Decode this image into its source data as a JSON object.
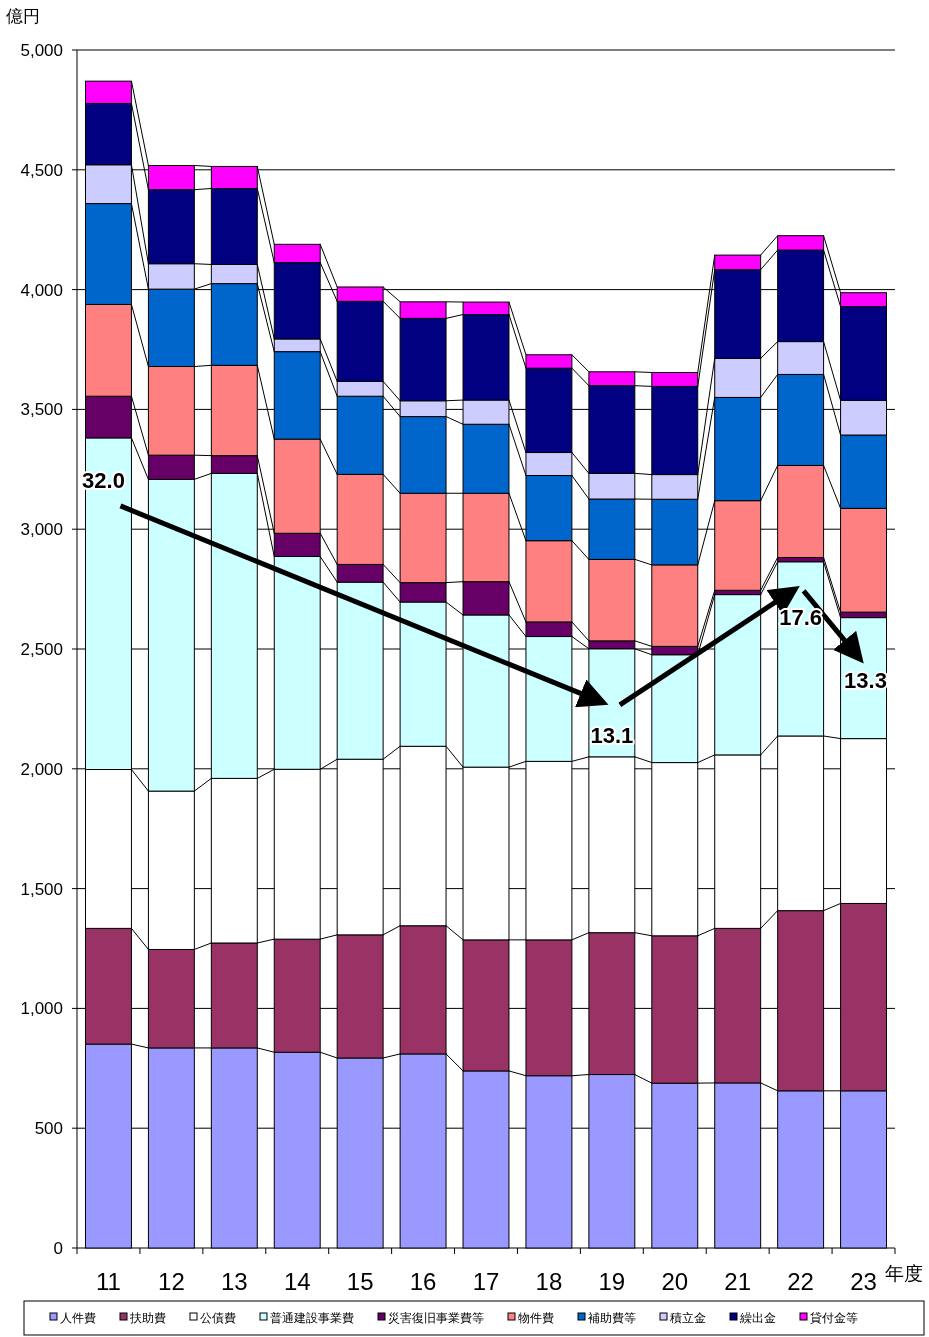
{
  "chart_data": {
    "type": "bar",
    "stacked": true,
    "ylabel": "億円",
    "xlabel": "年度",
    "categories": [
      "11",
      "12",
      "13",
      "14",
      "15",
      "16",
      "17",
      "18",
      "19",
      "20",
      "21",
      "22",
      "23"
    ],
    "series": [
      {
        "name": "人件費",
        "color": "#9999ff",
        "values": [
          851,
          835,
          835,
          817,
          793,
          810,
          739,
          719,
          724,
          688,
          689,
          656,
          656
        ]
      },
      {
        "name": "扶助費",
        "color": "#993366",
        "values": [
          483,
          411,
          438,
          472,
          514,
          535,
          547,
          567,
          592,
          615,
          645,
          752,
          782
        ]
      },
      {
        "name": "公債費",
        "color": "#ffffff",
        "values": [
          663,
          661,
          687,
          709,
          733,
          749,
          721,
          745,
          734,
          723,
          724,
          729,
          688
        ]
      },
      {
        "name": "普通建設事業費",
        "color": "#ccffff",
        "values": [
          1384,
          1301,
          1273,
          888,
          739,
          602,
          635,
          521,
          451,
          450,
          669,
          727,
          505
        ]
      },
      {
        "name": "災害復旧事業費等",
        "color": "#660066",
        "values": [
          174,
          101,
          74,
          97,
          74,
          81,
          139,
          61,
          33,
          35,
          18,
          18,
          23
        ]
      },
      {
        "name": "物件費",
        "color": "#ff8080",
        "values": [
          383,
          370,
          377,
          393,
          376,
          373,
          369,
          339,
          340,
          340,
          374,
          384,
          433
        ]
      },
      {
        "name": "補助費等",
        "color": "#0066cc",
        "values": [
          421,
          323,
          341,
          365,
          326,
          320,
          288,
          272,
          252,
          274,
          431,
          380,
          306
        ]
      },
      {
        "name": "積立金",
        "color": "#ccccff",
        "values": [
          162,
          106,
          80,
          53,
          62,
          66,
          101,
          96,
          107,
          103,
          163,
          137,
          145
        ]
      },
      {
        "name": "繰出金",
        "color": "#000080",
        "values": [
          256,
          309,
          317,
          319,
          334,
          344,
          357,
          352,
          366,
          368,
          370,
          382,
          391
        ]
      },
      {
        "name": "貸付金等",
        "color": "#ff00ff",
        "values": [
          93,
          101,
          92,
          76,
          60,
          69,
          52,
          56,
          58,
          58,
          61,
          60,
          58
        ]
      }
    ],
    "ylim": [
      0,
      5000
    ],
    "yticks": [
      0,
      500,
      {
        "value": 1000,
        "label": "1,000"
      },
      {
        "value": 1500,
        "label": "1,500"
      },
      {
        "value": 2000,
        "label": "2,000"
      },
      {
        "value": 2500,
        "label": "2,500"
      },
      {
        "value": 3000,
        "label": "3,000"
      },
      {
        "value": 3500,
        "label": "3,500"
      },
      {
        "value": 4000,
        "label": "4,000"
      },
      {
        "value": 4500,
        "label": "4,500"
      },
      {
        "value": 5000,
        "label": "5,000"
      }
    ],
    "grid": "y",
    "legend": "bottom",
    "annotations": [
      {
        "text": "32.0",
        "x": "11",
        "y": 3381
      },
      {
        "text": "13.1",
        "x": "19",
        "y": 2050
      },
      {
        "text": "17.6",
        "x": "22",
        "y": 2864
      },
      {
        "text": "13.3",
        "x": "23",
        "y": 2631
      }
    ]
  }
}
